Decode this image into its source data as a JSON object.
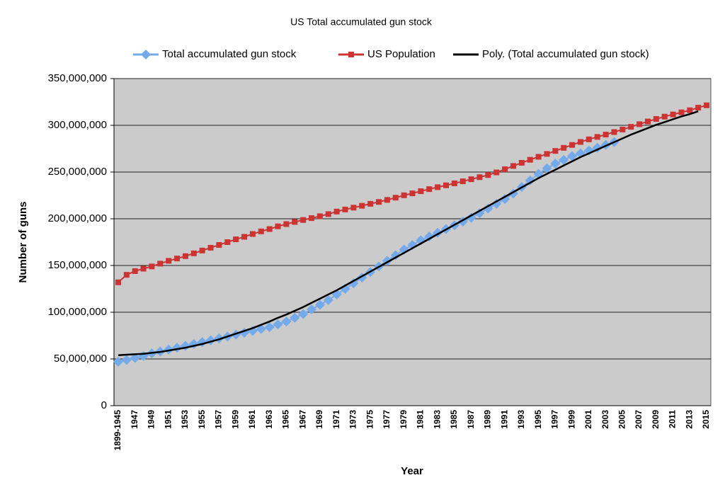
{
  "chart_data": {
    "type": "line",
    "title": "US Total accumulated gun stock",
    "y_label": "Number of guns",
    "x_label": "Year",
    "categories": [
      "1899-1945",
      null,
      "1947",
      null,
      "1949",
      null,
      "1951",
      null,
      "1953",
      null,
      "1955",
      null,
      "1957",
      null,
      "1959",
      null,
      "1961",
      null,
      "1963",
      null,
      "1965",
      null,
      "1967",
      null,
      "1969",
      null,
      "1971",
      null,
      "1973",
      null,
      "1975",
      null,
      "1977",
      null,
      "1979",
      null,
      "1981",
      null,
      "1983",
      null,
      "1985",
      null,
      "1987",
      null,
      "1989",
      null,
      "1991",
      null,
      "1993",
      null,
      "1995",
      null,
      "1997",
      null,
      "1999",
      null,
      "2001",
      null,
      "2003",
      null,
      "2005",
      null,
      "2007",
      null,
      "2009",
      null,
      "2011",
      null,
      "2013",
      null,
      "2015"
    ],
    "series": [
      {
        "name": "Total accumulated gun stock",
        "color": "#74aaea",
        "marker": "diamond",
        "values": [
          47000000,
          49000000,
          51000000,
          53000000,
          56000000,
          58000000,
          60000000,
          62000000,
          64000000,
          66000000,
          68000000,
          70000000,
          72000000,
          74000000,
          76000000,
          78000000,
          80000000,
          82000000,
          84000000,
          87000000,
          90000000,
          94000000,
          98000000,
          103000000,
          108000000,
          113000000,
          119000000,
          125000000,
          131000000,
          137000000,
          143000000,
          149000000,
          155000000,
          161000000,
          167000000,
          172000000,
          177000000,
          181000000,
          185000000,
          189000000,
          193000000,
          197000000,
          201000000,
          206000000,
          211000000,
          216000000,
          221000000,
          227000000,
          234000000,
          241000000,
          248000000,
          254000000,
          259000000,
          263000000,
          267000000,
          270000000,
          273000000,
          276000000,
          279000000,
          282000000,
          null,
          null,
          null,
          null,
          null,
          null,
          null,
          null,
          null,
          null,
          null
        ]
      },
      {
        "name": "US Population",
        "color": "#cc3333",
        "marker": "square",
        "values": [
          132000000,
          140000000,
          144000000,
          146600000,
          149000000,
          152000000,
          155000000,
          157500000,
          160000000,
          163000000,
          166000000,
          169000000,
          172000000,
          175000000,
          178000000,
          180700000,
          183700000,
          186500000,
          189000000,
          191900000,
          194300000,
          196600000,
          198700000,
          200700000,
          202700000,
          205000000,
          207700000,
          209900000,
          211900000,
          213900000,
          216000000,
          218000000,
          220200000,
          222600000,
          225100000,
          227200000,
          229500000,
          231700000,
          233800000,
          235800000,
          237900000,
          240100000,
          242300000,
          244500000,
          246800000,
          249600000,
          253000000,
          256500000,
          259900000,
          263100000,
          266300000,
          269400000,
          272600000,
          275900000,
          279000000,
          282200000,
          285000000,
          287600000,
          290100000,
          292800000,
          295500000,
          298400000,
          301200000,
          304100000,
          306800000,
          309300000,
          311600000,
          313900000,
          316100000,
          318900000,
          321400000
        ]
      },
      {
        "name": "Poly. (Total accumulated gun stock)",
        "color": "#000000",
        "marker": "none",
        "values": [
          54000000,
          54500000,
          55000000,
          55500000,
          56500000,
          57500000,
          59000000,
          60500000,
          62000000,
          64000000,
          66000000,
          68500000,
          71000000,
          74000000,
          77000000,
          80000000,
          83000000,
          86500000,
          90000000,
          94000000,
          97500000,
          101500000,
          105500000,
          110000000,
          114500000,
          119000000,
          123500000,
          128500000,
          133500000,
          138500000,
          143500000,
          148500000,
          153500000,
          158500000,
          163500000,
          168500000,
          173500000,
          178500000,
          183500000,
          188500000,
          193500000,
          198500000,
          203500000,
          208500000,
          213500000,
          218500000,
          223500000,
          228500000,
          233500000,
          238500000,
          243500000,
          248000000,
          252500000,
          257000000,
          261500000,
          266000000,
          270000000,
          274000000,
          278000000,
          282000000,
          286000000,
          290000000,
          293500000,
          297000000,
          300500000,
          303500000,
          306500000,
          309500000,
          312000000,
          315000000,
          null
        ]
      }
    ],
    "ylim": [
      0,
      350000000
    ],
    "yticks": [
      0,
      {
        "value": 50000000,
        "label": "50,000,000"
      },
      {
        "value": 100000000,
        "label": "100,000,000"
      },
      {
        "value": 150000000,
        "label": "150,000,000"
      },
      {
        "value": 200000000,
        "label": "200,000,000"
      },
      {
        "value": 250000000,
        "label": "250,000,000"
      },
      {
        "value": 300000000,
        "label": "300,000,000"
      },
      {
        "value": 350000000,
        "label": "350,000,000"
      }
    ],
    "grid": true,
    "legend": "top"
  }
}
